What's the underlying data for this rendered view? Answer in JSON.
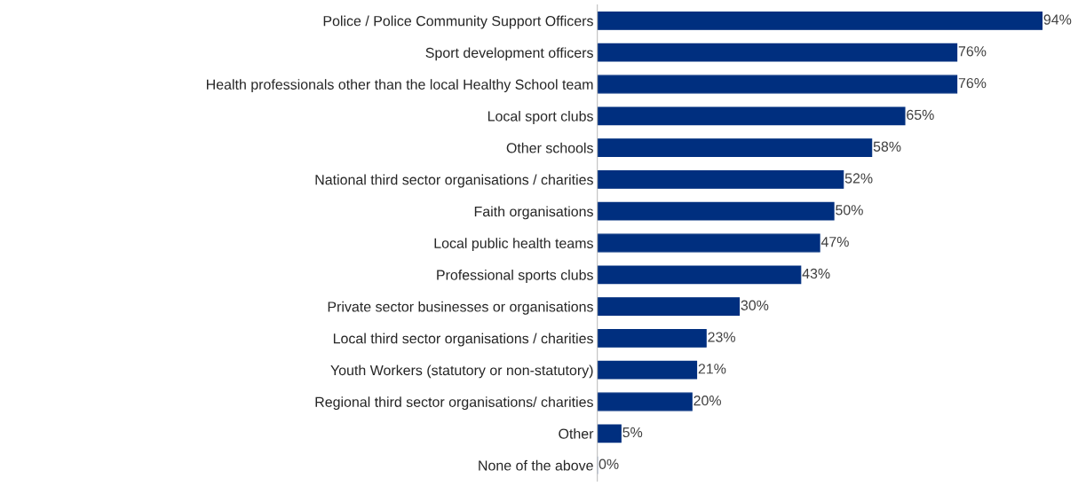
{
  "chart_data": {
    "type": "bar",
    "orientation": "horizontal",
    "data_labels": false,
    "categories": [
      "Police / Police Community Support Officers",
      "Sport development officers",
      "Health professionals other than the local Healthy School team",
      "Local sport clubs",
      "Other schools",
      "National third sector organisations / charities",
      "Faith organisations",
      "Local public health teams",
      "Professional sports clubs",
      "Private sector businesses or organisations",
      "Local third sector organisations / charities",
      "Youth Workers (statutory or non-statutory)",
      "Regional third sector organisations/ charities",
      "Other",
      "None of the above"
    ],
    "values": [
      94,
      76,
      76,
      65,
      58,
      52,
      50,
      47,
      43,
      30,
      23,
      21,
      20,
      5,
      0
    ],
    "value_labels": [
      "94%",
      "76%",
      "76%",
      "65%",
      "58%",
      "52%",
      "50%",
      "47%",
      "43%",
      "30%",
      "23%",
      "21%",
      "20%",
      "5%",
      "0%"
    ],
    "color": "#002f7f",
    "grid": false,
    "legend": false
  }
}
